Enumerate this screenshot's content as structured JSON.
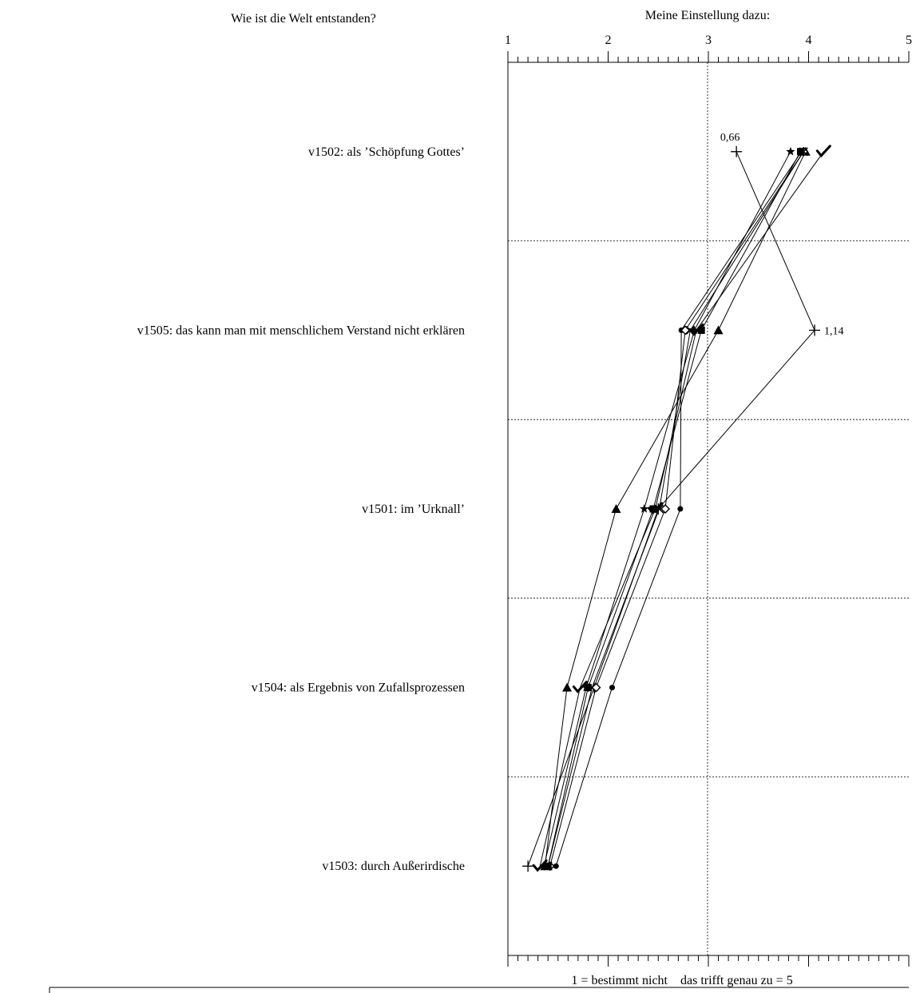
{
  "question_title": "Wie ist die Welt entstanden?",
  "scale_title": "Meine Einstellung dazu:",
  "scale_ticks": [
    "1",
    "2",
    "3",
    "4",
    "5"
  ],
  "footer_left": "1 = bestimmt nicht",
  "footer_right": "das trifft genau zu = 5",
  "chart_data": {
    "type": "line",
    "title": "Wie ist die Welt entstanden?",
    "xlabel": "Meine Einstellung dazu:",
    "xlim": [
      1,
      5
    ],
    "grid": true,
    "categories": [
      "v1502: als ’Schöpfung Gottes’",
      "v1505: das kann man mit menschlichem Verstand nicht erklären",
      "v1501: im ’Urknall’",
      "v1504: als Ergebnis von Zufallsprozessen",
      "v1503: durch Außerirdische"
    ],
    "series": [
      {
        "marker": "plus",
        "values": [
          3.28,
          4.06,
          2.5,
          1.86,
          1.2
        ],
        "labels": [
          "0,66",
          "1,14",
          "",
          "",
          ""
        ]
      },
      {
        "marker": "check",
        "values": [
          4.15,
          2.88,
          2.47,
          1.72,
          1.32
        ],
        "labels": [
          "",
          "",
          "",
          "",
          ""
        ]
      },
      {
        "marker": "star",
        "values": [
          3.82,
          2.86,
          2.36,
          1.78,
          1.36
        ],
        "labels": [
          "",
          "",
          "",
          "",
          ""
        ]
      },
      {
        "marker": "triangle",
        "values": [
          3.97,
          3.1,
          2.08,
          1.59,
          1.37
        ],
        "labels": [
          "",
          "",
          "",
          "",
          ""
        ]
      },
      {
        "marker": "dot",
        "values": [
          3.93,
          2.73,
          2.72,
          2.04,
          1.48
        ],
        "labels": [
          "",
          "",
          "",
          "",
          ""
        ]
      },
      {
        "marker": "diamond",
        "values": [
          3.95,
          2.77,
          2.57,
          1.88,
          1.42
        ],
        "labels": [
          "",
          "",
          "",
          "",
          ""
        ]
      },
      {
        "marker": "square",
        "values": [
          3.92,
          2.93,
          2.45,
          1.8,
          1.4
        ],
        "labels": [
          "",
          "",
          "",
          "",
          ""
        ]
      },
      {
        "marker": "cross",
        "values": [
          3.95,
          2.82,
          2.51,
          1.84,
          1.4
        ],
        "labels": [
          "",
          "",
          "",
          "",
          ""
        ]
      }
    ]
  }
}
